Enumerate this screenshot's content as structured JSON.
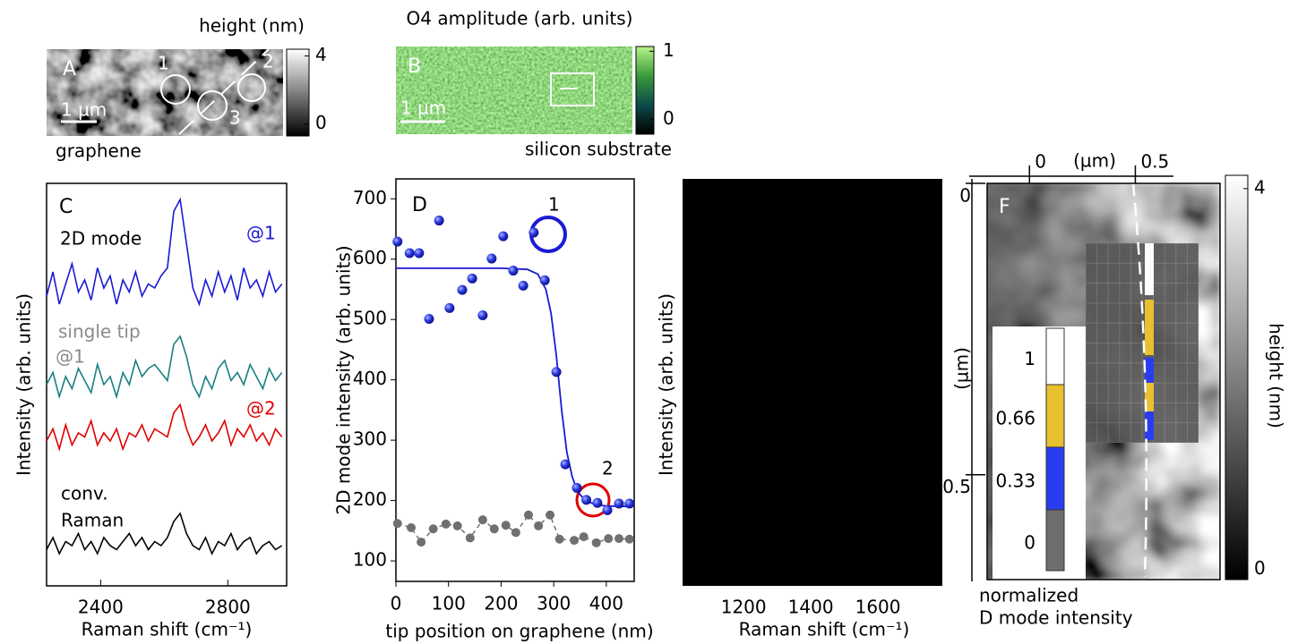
{
  "chart_data": [
    {
      "type": "image",
      "panel_label": "A",
      "title": "height (nm)",
      "annotations": [
        "1",
        "2",
        "3"
      ],
      "scale_bar": "1 µm",
      "caption": "graphene",
      "colorbar": {
        "lim": [
          -0.7,
          4.4
        ],
        "ticks": [
          0,
          4
        ],
        "colors": [
          "#000000",
          "#ffffff"
        ]
      }
    },
    {
      "type": "image",
      "panel_label": "B",
      "title": "O4 amplitude (arb. units)",
      "scale_bar": "1 µm",
      "caption": "silicon substrate",
      "colorbar": {
        "lim": [
          -0.22,
          1.07
        ],
        "ticks": [
          0,
          1
        ],
        "colors": [
          "#000000",
          "#0d4a4a",
          "#3a9a3a",
          "#b8f58a"
        ]
      }
    },
    {
      "type": "line",
      "panel_label": "C",
      "xlabel": "Raman shift (cm⁻¹)",
      "ylabel": "Intensity (arb. units)",
      "annotation": "2D mode",
      "xlim": [
        2230,
        2985
      ],
      "xticks": [
        2400,
        2800
      ],
      "ylim": [
        0,
        100
      ],
      "x": [
        2230,
        2250,
        2270,
        2290,
        2310,
        2330,
        2350,
        2370,
        2390,
        2410,
        2430,
        2450,
        2470,
        2490,
        2510,
        2530,
        2550,
        2570,
        2590,
        2610,
        2630,
        2650,
        2670,
        2690,
        2710,
        2730,
        2750,
        2770,
        2790,
        2810,
        2830,
        2850,
        2870,
        2890,
        2910,
        2930,
        2950,
        2970
      ],
      "series": [
        {
          "name_lines": [
            "@1"
          ],
          "color": "#1a1ad6",
          "label_color": "#1a1ad6",
          "values": [
            72,
            78,
            70,
            75,
            80,
            73,
            76,
            71,
            79,
            74,
            77,
            70,
            76,
            73,
            78,
            72,
            75,
            74,
            77,
            79,
            93,
            96,
            85,
            74,
            70,
            76,
            72,
            78,
            73,
            77,
            71,
            79,
            74,
            76,
            72,
            78,
            73,
            75
          ]
        },
        {
          "name_lines": [
            "single tip",
            "@1"
          ],
          "color": "#1a8080",
          "label_color": "#8a8a8a",
          "values": [
            50,
            53,
            47,
            52,
            49,
            54,
            51,
            48,
            55,
            50,
            52,
            47,
            53,
            50,
            56,
            52,
            54,
            55,
            53,
            51,
            60,
            62,
            57,
            50,
            47,
            52,
            49,
            54,
            56,
            51,
            53,
            50,
            55,
            52,
            49,
            54,
            51,
            53
          ]
        },
        {
          "name_lines": [
            "@2"
          ],
          "color": "#e00000",
          "label_color": "#e00000",
          "values": [
            36,
            39,
            34,
            40,
            35,
            38,
            37,
            41,
            35,
            38,
            36,
            39,
            34,
            38,
            37,
            40,
            36,
            39,
            38,
            37,
            43,
            45,
            39,
            35,
            37,
            40,
            36,
            38,
            41,
            35,
            39,
            37,
            40,
            36,
            38,
            35,
            39,
            37
          ]
        },
        {
          "name_lines": [
            "conv.",
            "Raman"
          ],
          "color": "#000000",
          "label_color": "#000000",
          "values": [
            9,
            12,
            8,
            11,
            10,
            13,
            9,
            11,
            8,
            12,
            10,
            9,
            11,
            13,
            10,
            12,
            9,
            11,
            10,
            12,
            16,
            18,
            13,
            10,
            9,
            12,
            8,
            11,
            10,
            13,
            9,
            11,
            12,
            8,
            10,
            11,
            9,
            10
          ]
        }
      ]
    },
    {
      "type": "scatter",
      "panel_label": "D",
      "xlabel": "tip position on graphene (nm)",
      "ylabel": "2D mode intensity (arb. units)",
      "annotations": [
        "1",
        "2"
      ],
      "xlim": [
        0,
        453
      ],
      "ylim": [
        66,
        733
      ],
      "xticks": [
        0,
        100,
        200,
        300,
        400
      ],
      "yticks": [
        100,
        200,
        300,
        400,
        500,
        600,
        700
      ],
      "series": [
        {
          "style": "points",
          "color": "#1a1ad6",
          "x": [
            3,
            26,
            44,
            63,
            82,
            102,
            126,
            145,
            165,
            182,
            204,
            223,
            242,
            262,
            283,
            305,
            322,
            344,
            362,
            383,
            402,
            424,
            444
          ],
          "values": [
            629,
            610,
            610,
            501,
            664,
            519,
            549,
            568,
            507,
            601,
            638,
            581,
            556,
            644,
            565,
            413,
            260,
            221,
            201,
            196,
            184,
            195,
            195
          ]
        },
        {
          "style": "dashed",
          "color": "#707070",
          "x": [
            3,
            29,
            48,
            71,
            95,
            117,
            141,
            165,
            187,
            209,
            228,
            252,
            271,
            293,
            311,
            339,
            357,
            381,
            404,
            424,
            444
          ],
          "values": [
            162,
            155,
            131,
            153,
            161,
            158,
            138,
            168,
            153,
            159,
            147,
            176,
            158,
            176,
            136,
            134,
            140,
            130,
            137,
            137,
            136
          ]
        },
        {
          "style": "line",
          "color": "#1a1ad6",
          "x": [
            0,
            50,
            100,
            150,
            200,
            250,
            270,
            285,
            295,
            305,
            315,
            325,
            335,
            345,
            360,
            380,
            400,
            450
          ],
          "values": [
            585,
            585,
            585,
            585,
            585,
            583,
            575,
            550,
            510,
            440,
            350,
            280,
            240,
            215,
            200,
            193,
            191,
            190
          ]
        }
      ]
    },
    {
      "type": "line",
      "xlabel": "Raman shift (cm⁻¹)",
      "ylabel": "Intensity (arb. units)",
      "xlim": [
        1018,
        1792
      ],
      "xticks": [
        1200,
        1400,
        1600
      ],
      "background": "#000000",
      "series": []
    },
    {
      "type": "image",
      "panel_label": "F",
      "xlabel": "(µm)",
      "ylabel": "(µm)",
      "xlim": [
        -0.2,
        0.9
      ],
      "ylim": [
        0,
        0.68
      ],
      "xticks": [
        0,
        0.5
      ],
      "yticks": [
        0,
        0.5
      ],
      "colorbar": {
        "label": "height (nm)",
        "lim": [
          -0.11,
          4.14
        ],
        "ticks": [
          0,
          4
        ],
        "colors": [
          "#000000",
          "#ffffff"
        ]
      },
      "legend": {
        "title_lines": [
          "normalized",
          "D mode intensity"
        ],
        "ticks": [
          1,
          0.66,
          0.33,
          0
        ],
        "colors": [
          "#ffffff",
          "#e8c030",
          "#2a3cf0",
          "#6e6e6e"
        ]
      }
    }
  ]
}
